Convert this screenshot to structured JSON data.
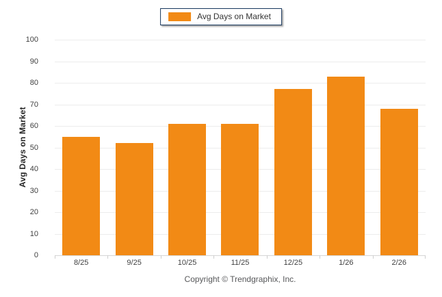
{
  "chart_data": {
    "type": "bar",
    "categories": [
      "8/25",
      "9/25",
      "10/25",
      "11/25",
      "12/25",
      "1/26",
      "2/26"
    ],
    "values": [
      55,
      52,
      61,
      61,
      77,
      83,
      68
    ],
    "series_name": "Avg Days on Market",
    "title": "",
    "xlabel": "",
    "ylabel": "Avg Days on Market",
    "ylim": [
      0,
      100
    ],
    "ytick_step": 10,
    "grid": true,
    "legend_position": "top-center",
    "bar_color": "#F28A15"
  },
  "legend": {
    "label": "Avg Days on Market",
    "swatch_color": "#F28A15",
    "border_color": "#17375D"
  },
  "axes": {
    "y_title": "Avg Days on Market",
    "y_ticks": [
      "100",
      "90",
      "80",
      "70",
      "60",
      "50",
      "40",
      "30",
      "20",
      "10",
      "0"
    ]
  },
  "footer": {
    "copyright": "Copyright © Trendgraphix, Inc."
  },
  "colors": {
    "bar": "#F28A15",
    "gridline": "#ECECEC",
    "baseline": "#D6D6D6",
    "tick": "#CFCFCF",
    "text": "#3F3F3F"
  }
}
